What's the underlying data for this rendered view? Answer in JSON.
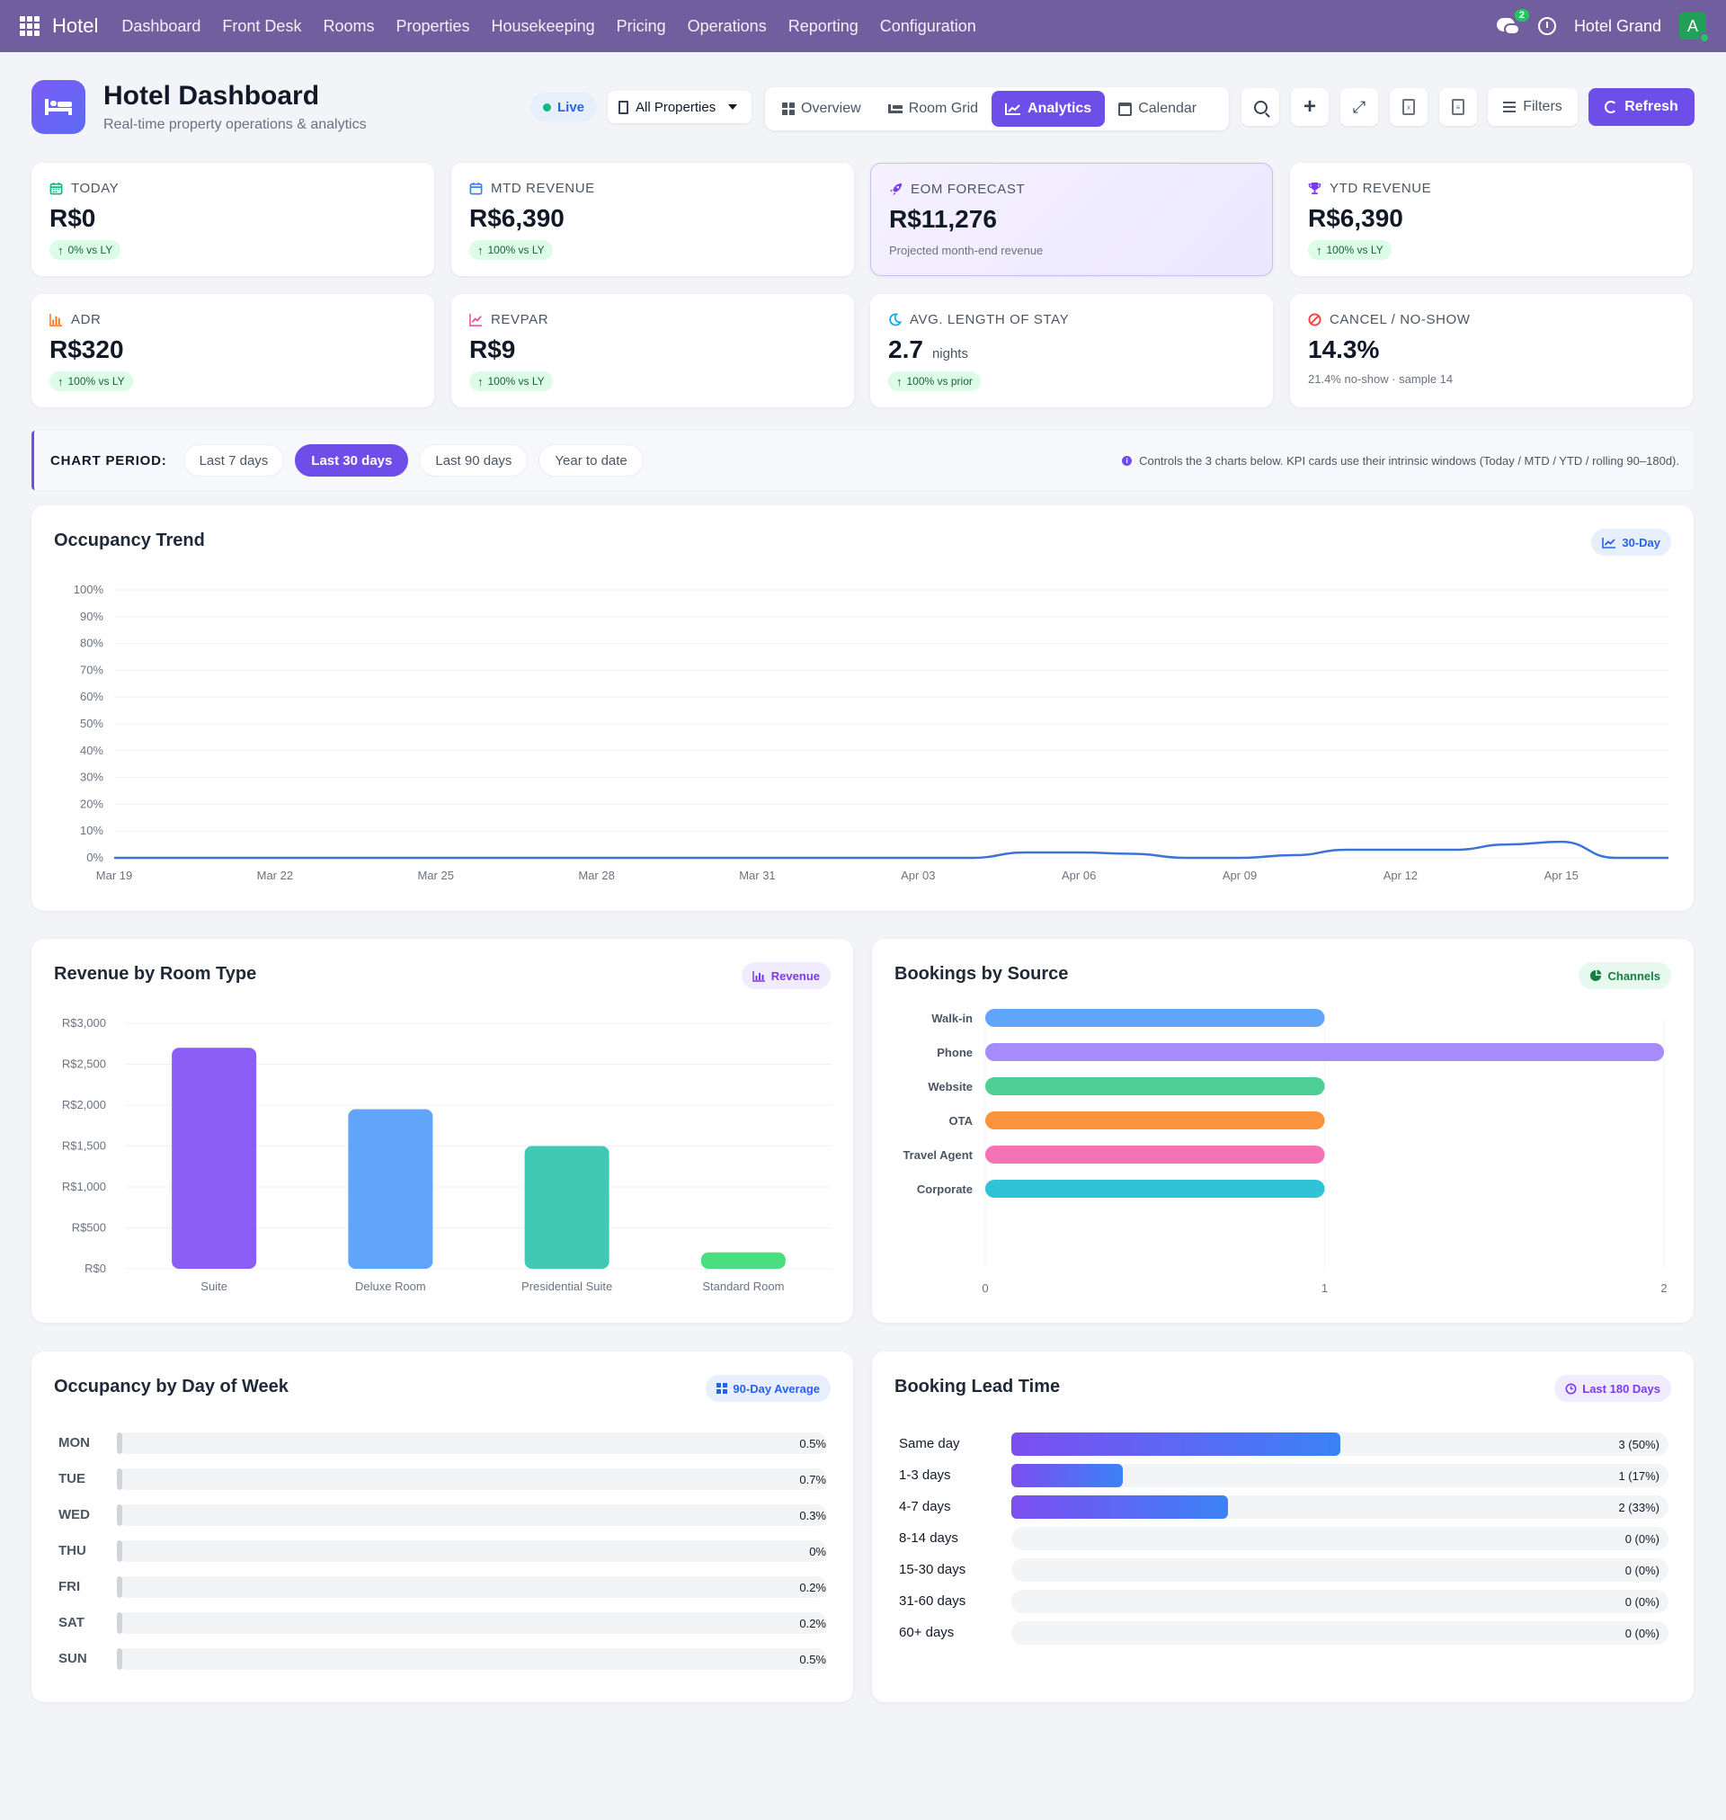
{
  "nav": {
    "brand": "Hotel",
    "menu": [
      "Dashboard",
      "Front Desk",
      "Rooms",
      "Properties",
      "Housekeeping",
      "Pricing",
      "Operations",
      "Reporting",
      "Configuration"
    ],
    "chat_count": "2",
    "property_name": "Hotel Grand",
    "avatar_letter": "A"
  },
  "header": {
    "title": "Hotel Dashboard",
    "subtitle": "Real-time property operations & analytics",
    "live_label": "Live",
    "property_select": "All Properties",
    "tabs": [
      {
        "label": "Overview",
        "icon": "grid-icon"
      },
      {
        "label": "Room Grid",
        "icon": "bed-icon"
      },
      {
        "label": "Analytics",
        "icon": "chart-line-icon",
        "active": true
      },
      {
        "label": "Calendar",
        "icon": "calendar-icon"
      }
    ],
    "filters_label": "Filters",
    "refresh_label": "Refresh"
  },
  "kpis": [
    {
      "label": "TODAY",
      "value": "R$0",
      "chip": "0% vs LY",
      "icon": "calendar-icon",
      "color": "#10b981"
    },
    {
      "label": "MTD REVENUE",
      "value": "R$6,390",
      "chip": "100% vs LY",
      "icon": "calendar-icon",
      "color": "#3b82f6"
    },
    {
      "label": "EOM FORECAST",
      "value": "R$11,276",
      "note": "Projected month-end revenue",
      "icon": "rocket-icon",
      "color": "#7c3aed"
    },
    {
      "label": "YTD REVENUE",
      "value": "R$6,390",
      "chip": "100% vs LY",
      "icon": "trophy-icon",
      "color": "#7c3aed"
    },
    {
      "label": "ADR",
      "value": "R$320",
      "chip": "100% vs LY",
      "icon": "bar-chart-icon",
      "color": "#f97316"
    },
    {
      "label": "REVPAR",
      "value": "R$9",
      "chip": "100% vs LY",
      "icon": "chart-line-icon",
      "color": "#ec4899"
    },
    {
      "label": "AVG. LENGTH OF STAY",
      "value": "2.7",
      "unit": "nights",
      "chip": "100% vs prior",
      "icon": "moon-icon",
      "color": "#0ea5e9"
    },
    {
      "label": "CANCEL / NO-SHOW",
      "value": "14.3%",
      "note": "21.4% no-show · sample 14",
      "icon": "ban-icon",
      "color": "#ef4444"
    }
  ],
  "period": {
    "title": "CHART PERIOD:",
    "options": [
      "Last 7 days",
      "Last 30 days",
      "Last 90 days",
      "Year to date"
    ],
    "selected": "Last 30 days",
    "info": "Controls the 3 charts below. KPI cards use their intrinsic windows (Today / MTD / YTD / rolling 90–180d)."
  },
  "occupancy_trend": {
    "title": "Occupancy Trend",
    "badge": "30-Day"
  },
  "revenue_room": {
    "title": "Revenue by Room Type",
    "badge": "Revenue"
  },
  "bookings_source": {
    "title": "Bookings by Source",
    "badge": "Channels"
  },
  "dow": {
    "title": "Occupancy by Day of Week",
    "badge": "90-Day Average",
    "rows": [
      {
        "day": "MON",
        "value": "0.5%",
        "pct": 0.5
      },
      {
        "day": "TUE",
        "value": "0.7%",
        "pct": 0.7
      },
      {
        "day": "WED",
        "value": "0.3%",
        "pct": 0.3
      },
      {
        "day": "THU",
        "value": "0%",
        "pct": 0
      },
      {
        "day": "FRI",
        "value": "0.2%",
        "pct": 0.2
      },
      {
        "day": "SAT",
        "value": "0.2%",
        "pct": 0.2
      },
      {
        "day": "SUN",
        "value": "0.5%",
        "pct": 0.5
      }
    ]
  },
  "lead": {
    "title": "Booking Lead Time",
    "badge": "Last 180 Days",
    "rows": [
      {
        "label": "Same day",
        "value": "3 (50%)",
        "share": 0.5
      },
      {
        "label": "1-3 days",
        "value": "1 (17%)",
        "share": 0.17
      },
      {
        "label": "4-7 days",
        "value": "2 (33%)",
        "share": 0.33
      },
      {
        "label": "8-14 days",
        "value": "0 (0%)",
        "share": 0
      },
      {
        "label": "15-30 days",
        "value": "0 (0%)",
        "share": 0
      },
      {
        "label": "31-60 days",
        "value": "0 (0%)",
        "share": 0
      },
      {
        "label": "60+ days",
        "value": "0 (0%)",
        "share": 0
      }
    ]
  },
  "chart_data": [
    {
      "type": "line",
      "title": "Occupancy Trend",
      "x": [
        "Mar 19",
        "Mar 20",
        "Mar 21",
        "Mar 22",
        "Mar 23",
        "Mar 24",
        "Mar 25",
        "Mar 26",
        "Mar 27",
        "Mar 28",
        "Mar 29",
        "Mar 30",
        "Mar 31",
        "Apr 01",
        "Apr 02",
        "Apr 03",
        "Apr 04",
        "Apr 05",
        "Apr 06",
        "Apr 07",
        "Apr 08",
        "Apr 09",
        "Apr 10",
        "Apr 11",
        "Apr 12",
        "Apr 13",
        "Apr 14",
        "Apr 15",
        "Apr 16",
        "Apr 17"
      ],
      "x_ticks": [
        "Mar 19",
        "Mar 22",
        "Mar 25",
        "Mar 28",
        "Mar 31",
        "Apr 03",
        "Apr 06",
        "Apr 09",
        "Apr 12",
        "Apr 15"
      ],
      "series": [
        {
          "values": [
            0,
            0,
            0,
            0,
            0,
            0,
            0,
            0,
            0,
            0,
            0,
            0,
            0,
            0,
            0,
            0,
            0,
            2,
            2,
            1.5,
            0,
            0,
            1,
            3,
            3,
            3,
            5,
            6,
            0,
            0
          ],
          "color": "#3b73db"
        }
      ],
      "y_ticks": [
        "0%",
        "10%",
        "20%",
        "30%",
        "40%",
        "50%",
        "60%",
        "70%",
        "80%",
        "90%",
        "100%"
      ],
      "ylim": [
        0,
        100
      ],
      "grid": true
    },
    {
      "type": "bar",
      "title": "Revenue by Room Type",
      "categories": [
        "Suite",
        "Deluxe Room",
        "Presidential Suite",
        "Standard Room"
      ],
      "values": [
        2700,
        1950,
        1500,
        200
      ],
      "colors": [
        "#8b5cf6",
        "#60a5fa",
        "#40c9b4",
        "#4ade80"
      ],
      "y_ticks": [
        "R$0",
        "R$500",
        "R$1,000",
        "R$1,500",
        "R$2,000",
        "R$2,500",
        "R$3,000"
      ],
      "ylim": [
        0,
        3000
      ],
      "grid": true
    },
    {
      "type": "bar",
      "orientation": "horizontal",
      "title": "Bookings by Source",
      "categories": [
        "Walk-in",
        "Phone",
        "Website",
        "OTA",
        "Travel Agent",
        "Corporate"
      ],
      "values": [
        1,
        2,
        1,
        1,
        1,
        1
      ],
      "colors": [
        "#60a5fa",
        "#a78bfa",
        "#4ecf96",
        "#fb923c",
        "#f472b6",
        "#30c3d8"
      ],
      "x_ticks": [
        "0",
        "1",
        "2"
      ],
      "xlim": [
        0,
        2
      ]
    }
  ]
}
